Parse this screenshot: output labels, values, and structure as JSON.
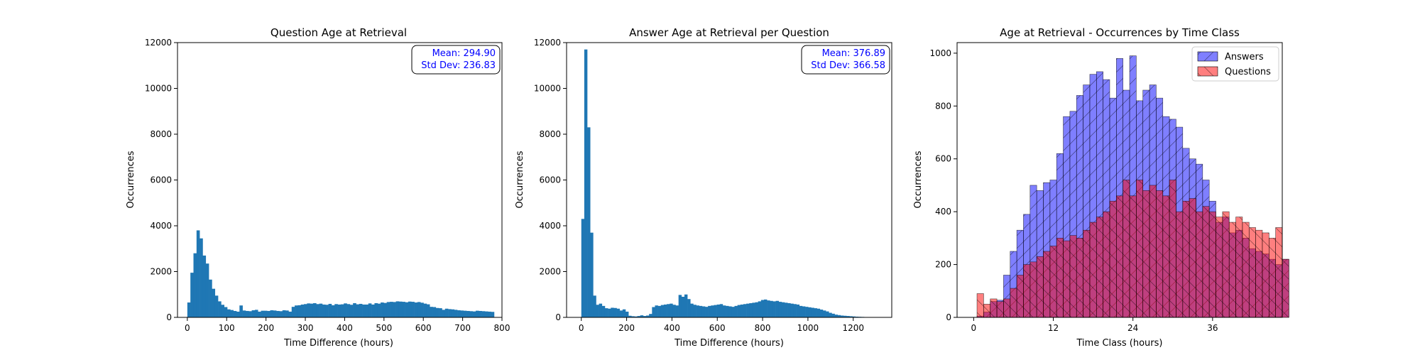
{
  "chart_data": [
    {
      "type": "bar",
      "title": "Question Age at Retrieval",
      "xlabel": "Time Difference (hours)",
      "ylabel": "Occurrences",
      "xlim": [
        -25,
        800
      ],
      "ylim": [
        0,
        12000
      ],
      "xticks": [
        0,
        100,
        200,
        300,
        400,
        500,
        600,
        700,
        800
      ],
      "yticks": [
        0,
        2000,
        4000,
        6000,
        8000,
        10000,
        12000
      ],
      "grid": false,
      "color": "#1f77b4",
      "annotation": {
        "mean": "Mean: 294.90",
        "std": "Std Dev: 236.83"
      },
      "bins": {
        "start": 0,
        "width": 7.8
      },
      "values": [
        650,
        1950,
        2800,
        3800,
        3450,
        2700,
        2350,
        1650,
        1250,
        950,
        700,
        550,
        450,
        350,
        320,
        280,
        250,
        520,
        300,
        280,
        270,
        310,
        330,
        250,
        290,
        290,
        280,
        310,
        300,
        280,
        270,
        310,
        300,
        250,
        460,
        520,
        530,
        560,
        580,
        610,
        600,
        620,
        580,
        600,
        560,
        550,
        590,
        530,
        580,
        560,
        570,
        610,
        580,
        550,
        620,
        570,
        590,
        560,
        560,
        610,
        560,
        620,
        600,
        650,
        630,
        670,
        680,
        670,
        700,
        690,
        680,
        660,
        690,
        680,
        650,
        670,
        640,
        600,
        570,
        460,
        450,
        410,
        400,
        330,
        380,
        360,
        350,
        330,
        310,
        300,
        290,
        280,
        270,
        260,
        290,
        280,
        270,
        260,
        250,
        240
      ]
    },
    {
      "type": "bar",
      "title": "Answer Age at Retrieval per Question",
      "xlabel": "Time Difference (hours)",
      "ylabel": "Occurrences",
      "xlim": [
        -65,
        1370
      ],
      "ylim": [
        0,
        12000
      ],
      "xticks": [
        0,
        200,
        400,
        600,
        800,
        1000,
        1200
      ],
      "yticks": [
        0,
        2000,
        4000,
        6000,
        8000,
        10000,
        12000
      ],
      "grid": false,
      "color": "#1f77b4",
      "annotation": {
        "mean": "Mean: 376.89",
        "std": "Std Dev: 366.58"
      },
      "bins": {
        "start": 0,
        "width": 13
      },
      "values": [
        4300,
        11700,
        8300,
        3700,
        950,
        550,
        600,
        500,
        400,
        380,
        420,
        410,
        380,
        300,
        350,
        250,
        70,
        50,
        40,
        60,
        90,
        60,
        80,
        150,
        450,
        520,
        500,
        540,
        560,
        580,
        600,
        550,
        520,
        980,
        900,
        1000,
        800,
        600,
        550,
        520,
        500,
        480,
        460,
        500,
        520,
        540,
        560,
        580,
        520,
        500,
        480,
        460,
        500,
        540,
        560,
        580,
        600,
        620,
        640,
        660,
        700,
        760,
        780,
        740,
        720,
        700,
        720,
        680,
        660,
        640,
        620,
        600,
        580,
        560,
        500,
        480,
        460,
        440,
        420,
        400,
        380,
        340,
        300,
        260,
        200,
        160,
        120,
        100,
        80,
        70,
        60,
        50,
        40,
        30,
        25,
        20,
        15,
        10,
        5,
        2
      ]
    },
    {
      "type": "bar",
      "title": "Age at Retrieval - Occurrences by Time Class",
      "xlabel": "Time Class (hours)",
      "ylabel": "Occurrences",
      "xlim": [
        -2.5,
        46.5
      ],
      "ylim": [
        0,
        1040
      ],
      "xticks": [
        0,
        12,
        24,
        36
      ],
      "yticks": [
        0,
        200,
        400,
        600,
        800,
        1000
      ],
      "grid": false,
      "legend": {
        "position": "top-right"
      },
      "x": [
        0,
        1,
        2,
        3,
        4,
        5,
        6,
        7,
        8,
        9,
        10,
        11,
        12,
        13,
        14,
        15,
        16,
        17,
        18,
        19,
        20,
        21,
        22,
        23,
        24,
        25,
        26,
        27,
        28,
        29,
        30,
        31,
        32,
        33,
        34,
        35,
        36,
        37,
        38,
        39,
        40,
        41,
        42,
        43,
        44,
        45,
        46,
        47
      ],
      "series": [
        {
          "name": "Answers",
          "color": "#0000ff",
          "alpha": 0.5,
          "hatch": "slash",
          "values": [
            0,
            5,
            20,
            60,
            65,
            160,
            250,
            330,
            390,
            500,
            480,
            510,
            520,
            620,
            760,
            780,
            840,
            880,
            920,
            930,
            900,
            830,
            980,
            860,
            990,
            820,
            860,
            880,
            830,
            760,
            750,
            720,
            640,
            600,
            580,
            520,
            440,
            360,
            380,
            320,
            330,
            300,
            260,
            250,
            240,
            220,
            200,
            220
          ]
        },
        {
          "name": "Questions",
          "color": "#ff0000",
          "alpha": 0.5,
          "hatch": "backslash",
          "values": [
            0,
            90,
            50,
            70,
            60,
            70,
            110,
            160,
            200,
            210,
            230,
            250,
            270,
            300,
            290,
            310,
            300,
            330,
            360,
            380,
            400,
            440,
            460,
            520,
            460,
            520,
            480,
            500,
            480,
            460,
            520,
            400,
            440,
            450,
            400,
            420,
            400,
            380,
            400,
            360,
            380,
            360,
            340,
            330,
            320,
            300,
            340,
            220
          ]
        }
      ]
    }
  ]
}
